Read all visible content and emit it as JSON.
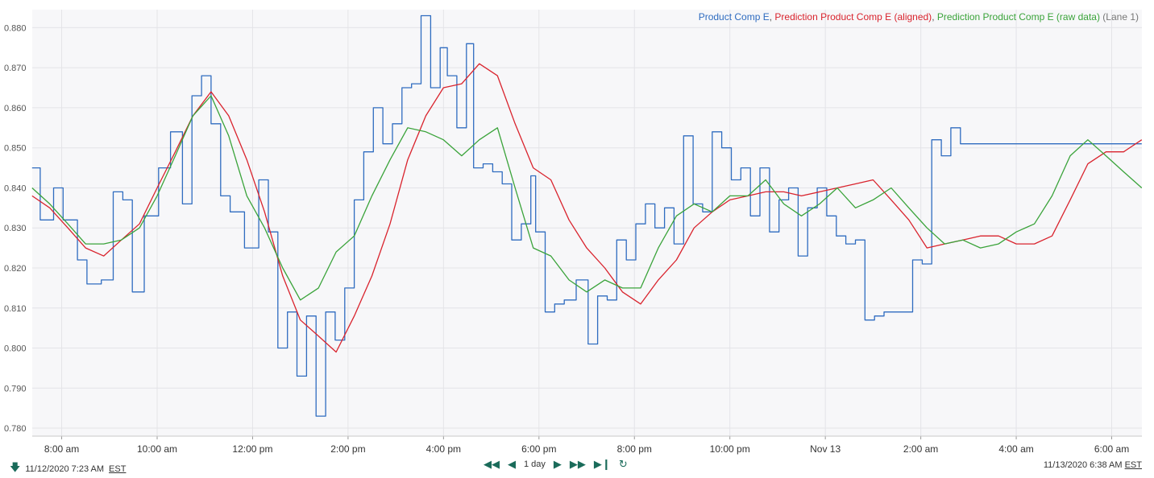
{
  "chart_data": {
    "type": "line",
    "legend": {
      "entries": [
        {
          "name": "Product Comp E",
          "color": "#2f6cc0",
          "sep": ", "
        },
        {
          "name": "Prediction Product Comp E (aligned)",
          "color": "#d9232d",
          "sep": ", "
        },
        {
          "name": "Prediction Product Comp E (raw data)",
          "color": "#3aa33a",
          "sep": " "
        }
      ],
      "suffix": "(Lane 1)",
      "position": "top-right"
    },
    "ylim": [
      0.778,
      0.8845
    ],
    "y_ticks": [
      "0.780",
      "0.790",
      "0.800",
      "0.810",
      "0.820",
      "0.830",
      "0.840",
      "0.850",
      "0.860",
      "0.870",
      "0.880"
    ],
    "y_tick_values": [
      0.78,
      0.79,
      0.8,
      0.81,
      0.82,
      0.83,
      0.84,
      0.85,
      0.86,
      0.87,
      0.88
    ],
    "x_unit": "hours since 11/12/2020 12:00 AM",
    "xlim": [
      7.383,
      30.633
    ],
    "x_ticks": [
      {
        "label": "8:00 am",
        "x": 8
      },
      {
        "label": "10:00 am",
        "x": 10
      },
      {
        "label": "12:00 pm",
        "x": 12
      },
      {
        "label": "2:00 pm",
        "x": 14
      },
      {
        "label": "4:00 pm",
        "x": 16
      },
      {
        "label": "6:00 pm",
        "x": 18
      },
      {
        "label": "8:00 pm",
        "x": 20
      },
      {
        "label": "10:00 pm",
        "x": 22
      },
      {
        "label": "Nov 13",
        "x": 24
      },
      {
        "label": "2:00 am",
        "x": 26
      },
      {
        "label": "4:00 am",
        "x": 28
      },
      {
        "label": "6:00 am",
        "x": 30
      }
    ],
    "grid": true,
    "series": [
      {
        "name": "Product Comp E",
        "color": "#2f6cc0",
        "step": true,
        "x": [
          7.38,
          7.55,
          7.83,
          8.03,
          8.33,
          8.53,
          8.83,
          9.08,
          9.28,
          9.48,
          9.73,
          10.03,
          10.28,
          10.53,
          10.73,
          10.93,
          11.13,
          11.33,
          11.53,
          11.83,
          12.13,
          12.33,
          12.53,
          12.73,
          12.93,
          13.13,
          13.33,
          13.53,
          13.73,
          13.93,
          14.13,
          14.33,
          14.53,
          14.73,
          14.93,
          15.13,
          15.33,
          15.53,
          15.73,
          15.93,
          16.08,
          16.28,
          16.48,
          16.63,
          16.83,
          17.03,
          17.23,
          17.43,
          17.63,
          17.83,
          17.93,
          18.13,
          18.33,
          18.53,
          18.78,
          19.03,
          19.23,
          19.43,
          19.63,
          19.83,
          20.03,
          20.23,
          20.43,
          20.63,
          20.83,
          21.03,
          21.23,
          21.43,
          21.63,
          21.83,
          22.03,
          22.23,
          22.43,
          22.63,
          22.83,
          23.03,
          23.23,
          23.43,
          23.63,
          23.83,
          24.03,
          24.23,
          24.43,
          24.63,
          24.83,
          25.03,
          25.23,
          25.43,
          25.63,
          25.83,
          26.03,
          26.23,
          26.43,
          26.63,
          26.83,
          27.03,
          27.23,
          27.43,
          27.63,
          27.83,
          28.03,
          28.23,
          28.43,
          28.63,
          28.83,
          29.03,
          29.23,
          29.43,
          29.63,
          29.83,
          30.03,
          30.23,
          30.43,
          30.63
        ],
        "y": [
          0.845,
          0.832,
          0.84,
          0.832,
          0.822,
          0.816,
          0.817,
          0.839,
          0.837,
          0.814,
          0.833,
          0.845,
          0.854,
          0.836,
          0.863,
          0.868,
          0.856,
          0.838,
          0.834,
          0.825,
          0.842,
          0.829,
          0.8,
          0.809,
          0.793,
          0.808,
          0.783,
          0.809,
          0.802,
          0.815,
          0.837,
          0.849,
          0.86,
          0.851,
          0.856,
          0.865,
          0.866,
          0.883,
          0.865,
          0.875,
          0.868,
          0.855,
          0.876,
          0.845,
          0.846,
          0.844,
          0.841,
          0.827,
          0.831,
          0.843,
          0.829,
          0.809,
          0.811,
          0.812,
          0.817,
          0.801,
          0.813,
          0.812,
          0.827,
          0.822,
          0.831,
          0.836,
          0.83,
          0.835,
          0.826,
          0.853,
          0.836,
          0.834,
          0.854,
          0.85,
          0.842,
          0.845,
          0.833,
          0.845,
          0.829,
          0.837,
          0.84,
          0.823,
          0.835,
          0.84,
          0.833,
          0.828,
          0.826,
          0.827,
          0.807,
          0.808,
          0.809,
          0.809,
          0.809,
          0.822,
          0.821,
          0.852,
          0.848,
          0.855,
          0.851,
          0.851,
          0.851,
          0.851,
          0.851,
          0.851,
          0.851,
          0.851,
          0.851,
          0.851,
          0.851,
          0.851,
          0.851,
          0.851,
          0.851,
          0.851,
          0.851,
          0.851,
          0.851,
          0.851
        ]
      },
      {
        "name": "Prediction Product Comp E (aligned)",
        "color": "#d9232d",
        "step": false,
        "x": [
          7.38,
          7.75,
          8.13,
          8.5,
          8.88,
          9.25,
          9.63,
          10.0,
          10.38,
          10.75,
          11.13,
          11.5,
          11.88,
          12.25,
          12.63,
          13.0,
          13.38,
          13.75,
          14.13,
          14.5,
          14.88,
          15.25,
          15.63,
          16.0,
          16.38,
          16.75,
          17.13,
          17.5,
          17.88,
          18.25,
          18.63,
          19.0,
          19.38,
          19.75,
          20.13,
          20.5,
          20.88,
          21.25,
          21.63,
          22.0,
          22.38,
          22.75,
          23.13,
          23.5,
          23.88,
          24.25,
          24.63,
          25.0,
          25.38,
          25.75,
          26.13,
          26.5,
          26.88,
          27.25,
          27.63,
          28.0,
          28.38,
          28.75,
          29.13,
          29.5,
          29.88,
          30.25,
          30.63
        ],
        "y": [
          0.838,
          0.835,
          0.83,
          0.825,
          0.823,
          0.827,
          0.831,
          0.84,
          0.849,
          0.858,
          0.864,
          0.858,
          0.847,
          0.834,
          0.818,
          0.807,
          0.803,
          0.799,
          0.808,
          0.818,
          0.831,
          0.847,
          0.858,
          0.865,
          0.866,
          0.871,
          0.868,
          0.856,
          0.845,
          0.842,
          0.832,
          0.825,
          0.82,
          0.814,
          0.811,
          0.817,
          0.822,
          0.83,
          0.834,
          0.837,
          0.838,
          0.839,
          0.839,
          0.838,
          0.839,
          0.84,
          0.841,
          0.842,
          0.837,
          0.832,
          0.825,
          0.826,
          0.827,
          0.828,
          0.828,
          0.826,
          0.826,
          0.828,
          0.837,
          0.846,
          0.849,
          0.849,
          0.852
        ]
      },
      {
        "name": "Prediction Product Comp E (raw data)",
        "color": "#3aa33a",
        "step": false,
        "x": [
          7.38,
          7.75,
          8.13,
          8.5,
          8.88,
          9.25,
          9.63,
          10.0,
          10.38,
          10.75,
          11.13,
          11.5,
          11.88,
          12.25,
          12.63,
          13.0,
          13.38,
          13.75,
          14.13,
          14.5,
          14.88,
          15.25,
          15.63,
          16.0,
          16.38,
          16.75,
          17.13,
          17.5,
          17.88,
          18.25,
          18.63,
          19.0,
          19.38,
          19.75,
          20.13,
          20.5,
          20.88,
          21.25,
          21.63,
          22.0,
          22.38,
          22.75,
          23.13,
          23.5,
          23.88,
          24.25,
          24.63,
          25.0,
          25.38,
          25.75,
          26.13,
          26.5,
          26.88,
          27.25,
          27.63,
          28.0,
          28.38,
          28.75,
          29.13,
          29.5,
          29.88,
          30.25,
          30.63
        ],
        "y": [
          0.84,
          0.836,
          0.831,
          0.826,
          0.826,
          0.827,
          0.83,
          0.838,
          0.848,
          0.858,
          0.863,
          0.853,
          0.838,
          0.83,
          0.82,
          0.812,
          0.815,
          0.824,
          0.828,
          0.838,
          0.847,
          0.855,
          0.854,
          0.852,
          0.848,
          0.852,
          0.855,
          0.84,
          0.825,
          0.823,
          0.817,
          0.814,
          0.817,
          0.815,
          0.815,
          0.825,
          0.833,
          0.836,
          0.834,
          0.838,
          0.838,
          0.842,
          0.836,
          0.833,
          0.836,
          0.84,
          0.835,
          0.837,
          0.84,
          0.835,
          0.83,
          0.826,
          0.827,
          0.825,
          0.826,
          0.829,
          0.831,
          0.838,
          0.848,
          0.852,
          0.848,
          0.844,
          0.84
        ]
      }
    ]
  },
  "footer": {
    "range_start": "11/12/2020 7:23 AM",
    "range_end": "11/13/2020 6:38 AM",
    "timezone": "EST",
    "nav": {
      "first_icon": "double-left-arrow-icon",
      "prev_icon": "left-arrow-icon",
      "span_label": "1 day",
      "next_icon": "right-arrow-icon",
      "last_icon": "double-right-arrow-icon",
      "end_icon": "skip-end-icon",
      "refresh_icon": "refresh-icon"
    }
  }
}
